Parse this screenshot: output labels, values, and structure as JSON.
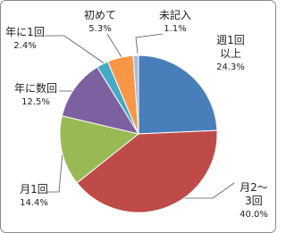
{
  "chart_data": {
    "type": "pie",
    "categories": [
      "週1回以上",
      "月2～3回",
      "月1回",
      "年に数回",
      "年に1回",
      "初めて",
      "未記入"
    ],
    "values": [
      24.3,
      40.0,
      14.4,
      12.5,
      2.4,
      5.3,
      1.1
    ],
    "value_labels": [
      "24.3%",
      "40.0%",
      "14.4%",
      "12.5%",
      "2.4%",
      "5.3%",
      "1.1%"
    ],
    "colors": [
      "#4a7ebb",
      "#be4b48",
      "#98b954",
      "#7d60a0",
      "#46aac5",
      "#f79646",
      "#a9bcd9"
    ]
  }
}
